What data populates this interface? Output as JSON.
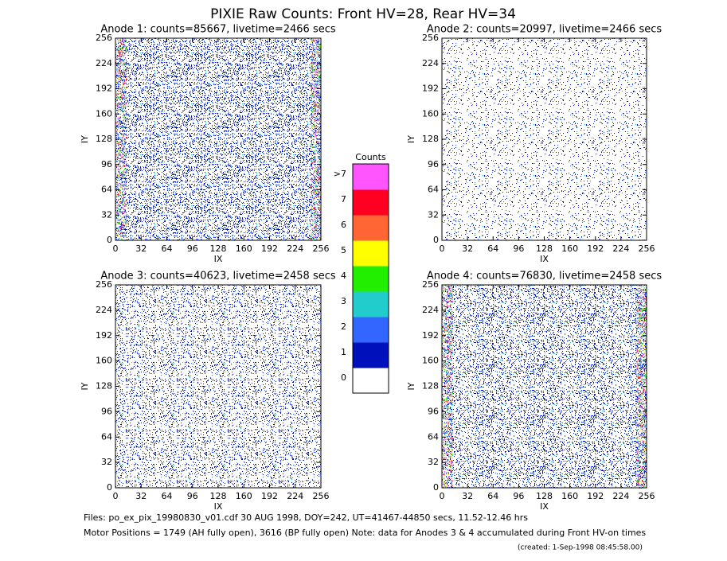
{
  "title": "PIXIE Raw Counts:  Front HV=28, Rear HV=34",
  "chart_data": [
    {
      "type": "heatmap",
      "title": "Anode 1: counts=85667, livetime=2466 secs",
      "xlabel": "IX",
      "ylabel": "IY",
      "xlim": [
        0,
        256
      ],
      "ylim": [
        0,
        256
      ],
      "xticks": [
        0,
        32,
        64,
        96,
        128,
        160,
        192,
        224,
        256
      ],
      "yticks": [
        0,
        32,
        64,
        96,
        128,
        160,
        192,
        224,
        256
      ]
    },
    {
      "type": "heatmap",
      "title": "Anode 2: counts=20997, livetime=2466 secs",
      "xlabel": "IX",
      "ylabel": "IY",
      "xlim": [
        0,
        256
      ],
      "ylim": [
        0,
        256
      ],
      "xticks": [
        0,
        32,
        64,
        96,
        128,
        160,
        192,
        224,
        256
      ],
      "yticks": [
        0,
        32,
        64,
        96,
        128,
        160,
        192,
        224,
        256
      ]
    },
    {
      "type": "heatmap",
      "title": "Anode 3: counts=40623, livetime=2458 secs",
      "xlabel": "IX",
      "ylabel": "IY",
      "xlim": [
        0,
        256
      ],
      "ylim": [
        0,
        256
      ],
      "xticks": [
        0,
        32,
        64,
        96,
        128,
        160,
        192,
        224,
        256
      ],
      "yticks": [
        0,
        32,
        64,
        96,
        128,
        160,
        192,
        224,
        256
      ]
    },
    {
      "type": "heatmap",
      "title": "Anode 4: counts=76830, livetime=2458 secs",
      "xlabel": "IX",
      "ylabel": "IY",
      "xlim": [
        0,
        256
      ],
      "ylim": [
        0,
        256
      ],
      "xticks": [
        0,
        32,
        64,
        96,
        128,
        160,
        192,
        224,
        256
      ],
      "yticks": [
        0,
        32,
        64,
        96,
        128,
        160,
        192,
        224,
        256
      ]
    }
  ],
  "colorbar": {
    "title": "Counts",
    "labels": [
      "0",
      "1",
      "2",
      "3",
      "4",
      "5",
      "6",
      "7",
      ">7"
    ],
    "colors": [
      "#ffffff",
      "#0011bb",
      "#3366ff",
      "#22cccc",
      "#22ee00",
      "#ffff00",
      "#ff6633",
      "#ff0022",
      "#ff55ff"
    ]
  },
  "footer": [
    "Files: po_ex_pix_19980830_v01.cdf    30 AUG 1998, DOY=242, UT=41467-44850 secs, 11.52-12.46 hrs",
    "Motor Positions = 1749 (AH fully open), 3616 (BP fully open)    Note: data for Anodes 3 & 4 accumulated during Front HV-on times",
    "(created:  1-Sep-1998 08:45:58.00)"
  ]
}
